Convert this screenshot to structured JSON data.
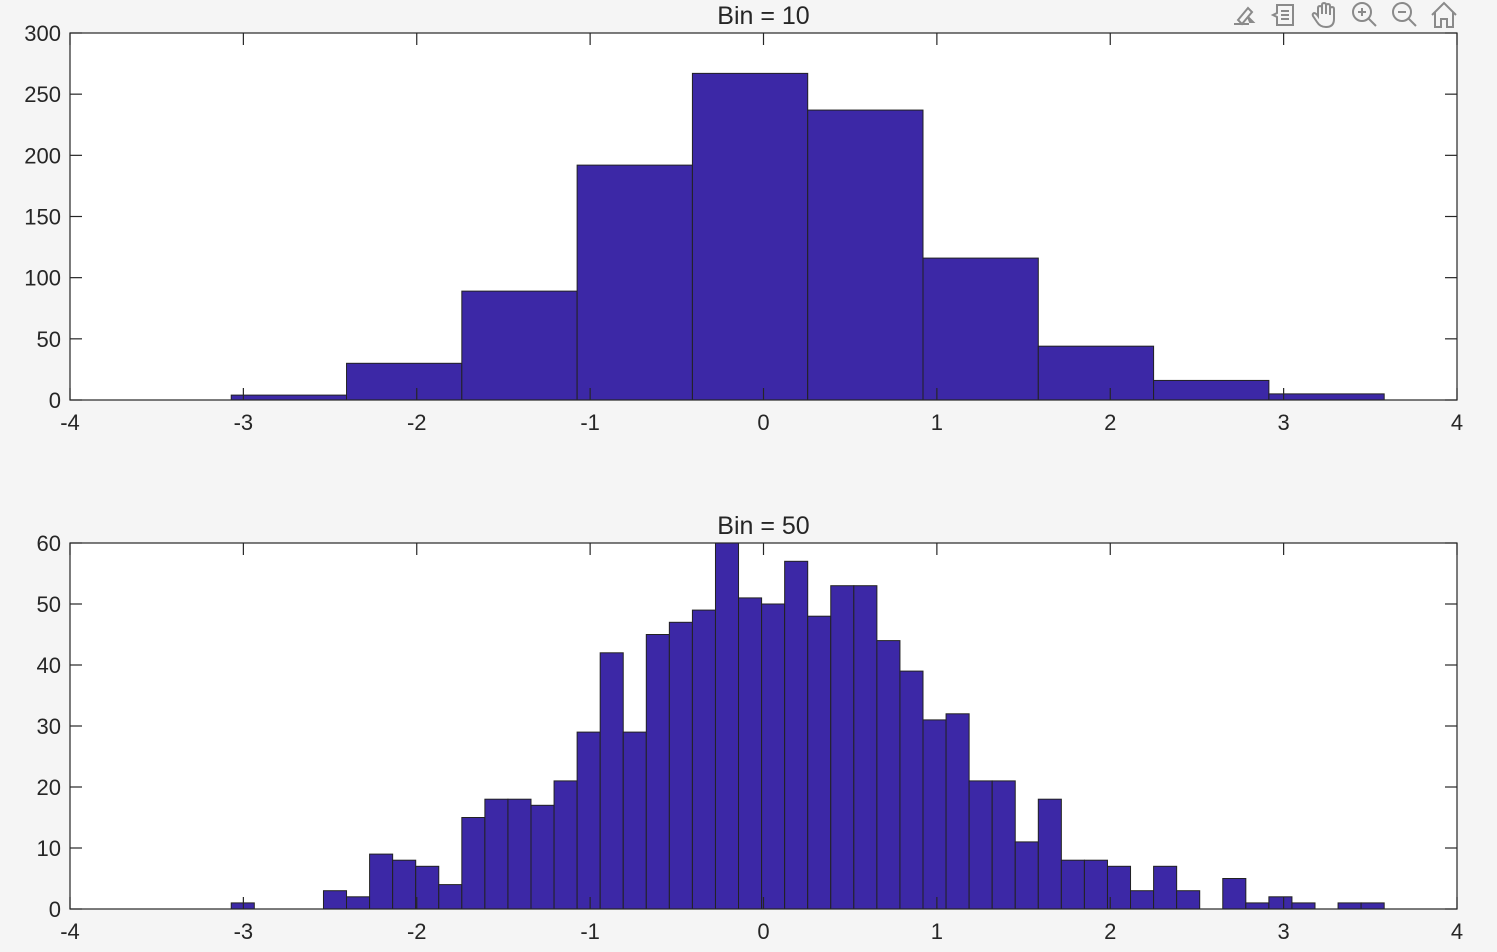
{
  "toolbar": {
    "icons": [
      "brush-icon",
      "data-tips-icon",
      "pan-icon",
      "zoom-in-icon",
      "zoom-out-icon",
      "home-icon"
    ],
    "color": "#8a8a8a"
  },
  "colors": {
    "bar_fill": "#3c28a6",
    "bar_edge": "#222222",
    "axis": "#262626",
    "background": "#f5f5f5",
    "plot_bg": "#ffffff"
  },
  "chart_data": [
    {
      "type": "bar",
      "title": "Bin = 10",
      "xlim": [
        -4,
        4
      ],
      "ylim": [
        0,
        300
      ],
      "xticks": [
        -4,
        -3,
        -2,
        -1,
        0,
        1,
        2,
        3,
        4
      ],
      "yticks": [
        0,
        50,
        100,
        150,
        200,
        250,
        300
      ],
      "bin_edges": [
        -3.07,
        -2.405,
        -1.74,
        -1.075,
        -0.41,
        0.255,
        0.92,
        1.585,
        2.25,
        2.915,
        3.58
      ],
      "values": [
        4,
        30,
        89,
        192,
        267,
        237,
        116,
        44,
        16,
        5
      ]
    },
    {
      "type": "bar",
      "title": "Bin = 50",
      "xlim": [
        -4,
        4
      ],
      "ylim": [
        0,
        60
      ],
      "xticks": [
        -4,
        -3,
        -2,
        -1,
        0,
        1,
        2,
        3,
        4
      ],
      "yticks": [
        0,
        10,
        20,
        30,
        40,
        50,
        60
      ],
      "bin_start": -3.07,
      "bin_width": 0.133,
      "values": [
        1,
        0,
        0,
        0,
        3,
        2,
        9,
        8,
        7,
        4,
        15,
        18,
        18,
        17,
        21,
        29,
        42,
        29,
        45,
        47,
        49,
        60,
        51,
        50,
        57,
        48,
        53,
        53,
        44,
        39,
        31,
        32,
        21,
        21,
        11,
        18,
        8,
        8,
        7,
        3,
        7,
        3,
        0,
        5,
        1,
        2,
        1,
        0,
        1,
        1
      ]
    }
  ]
}
